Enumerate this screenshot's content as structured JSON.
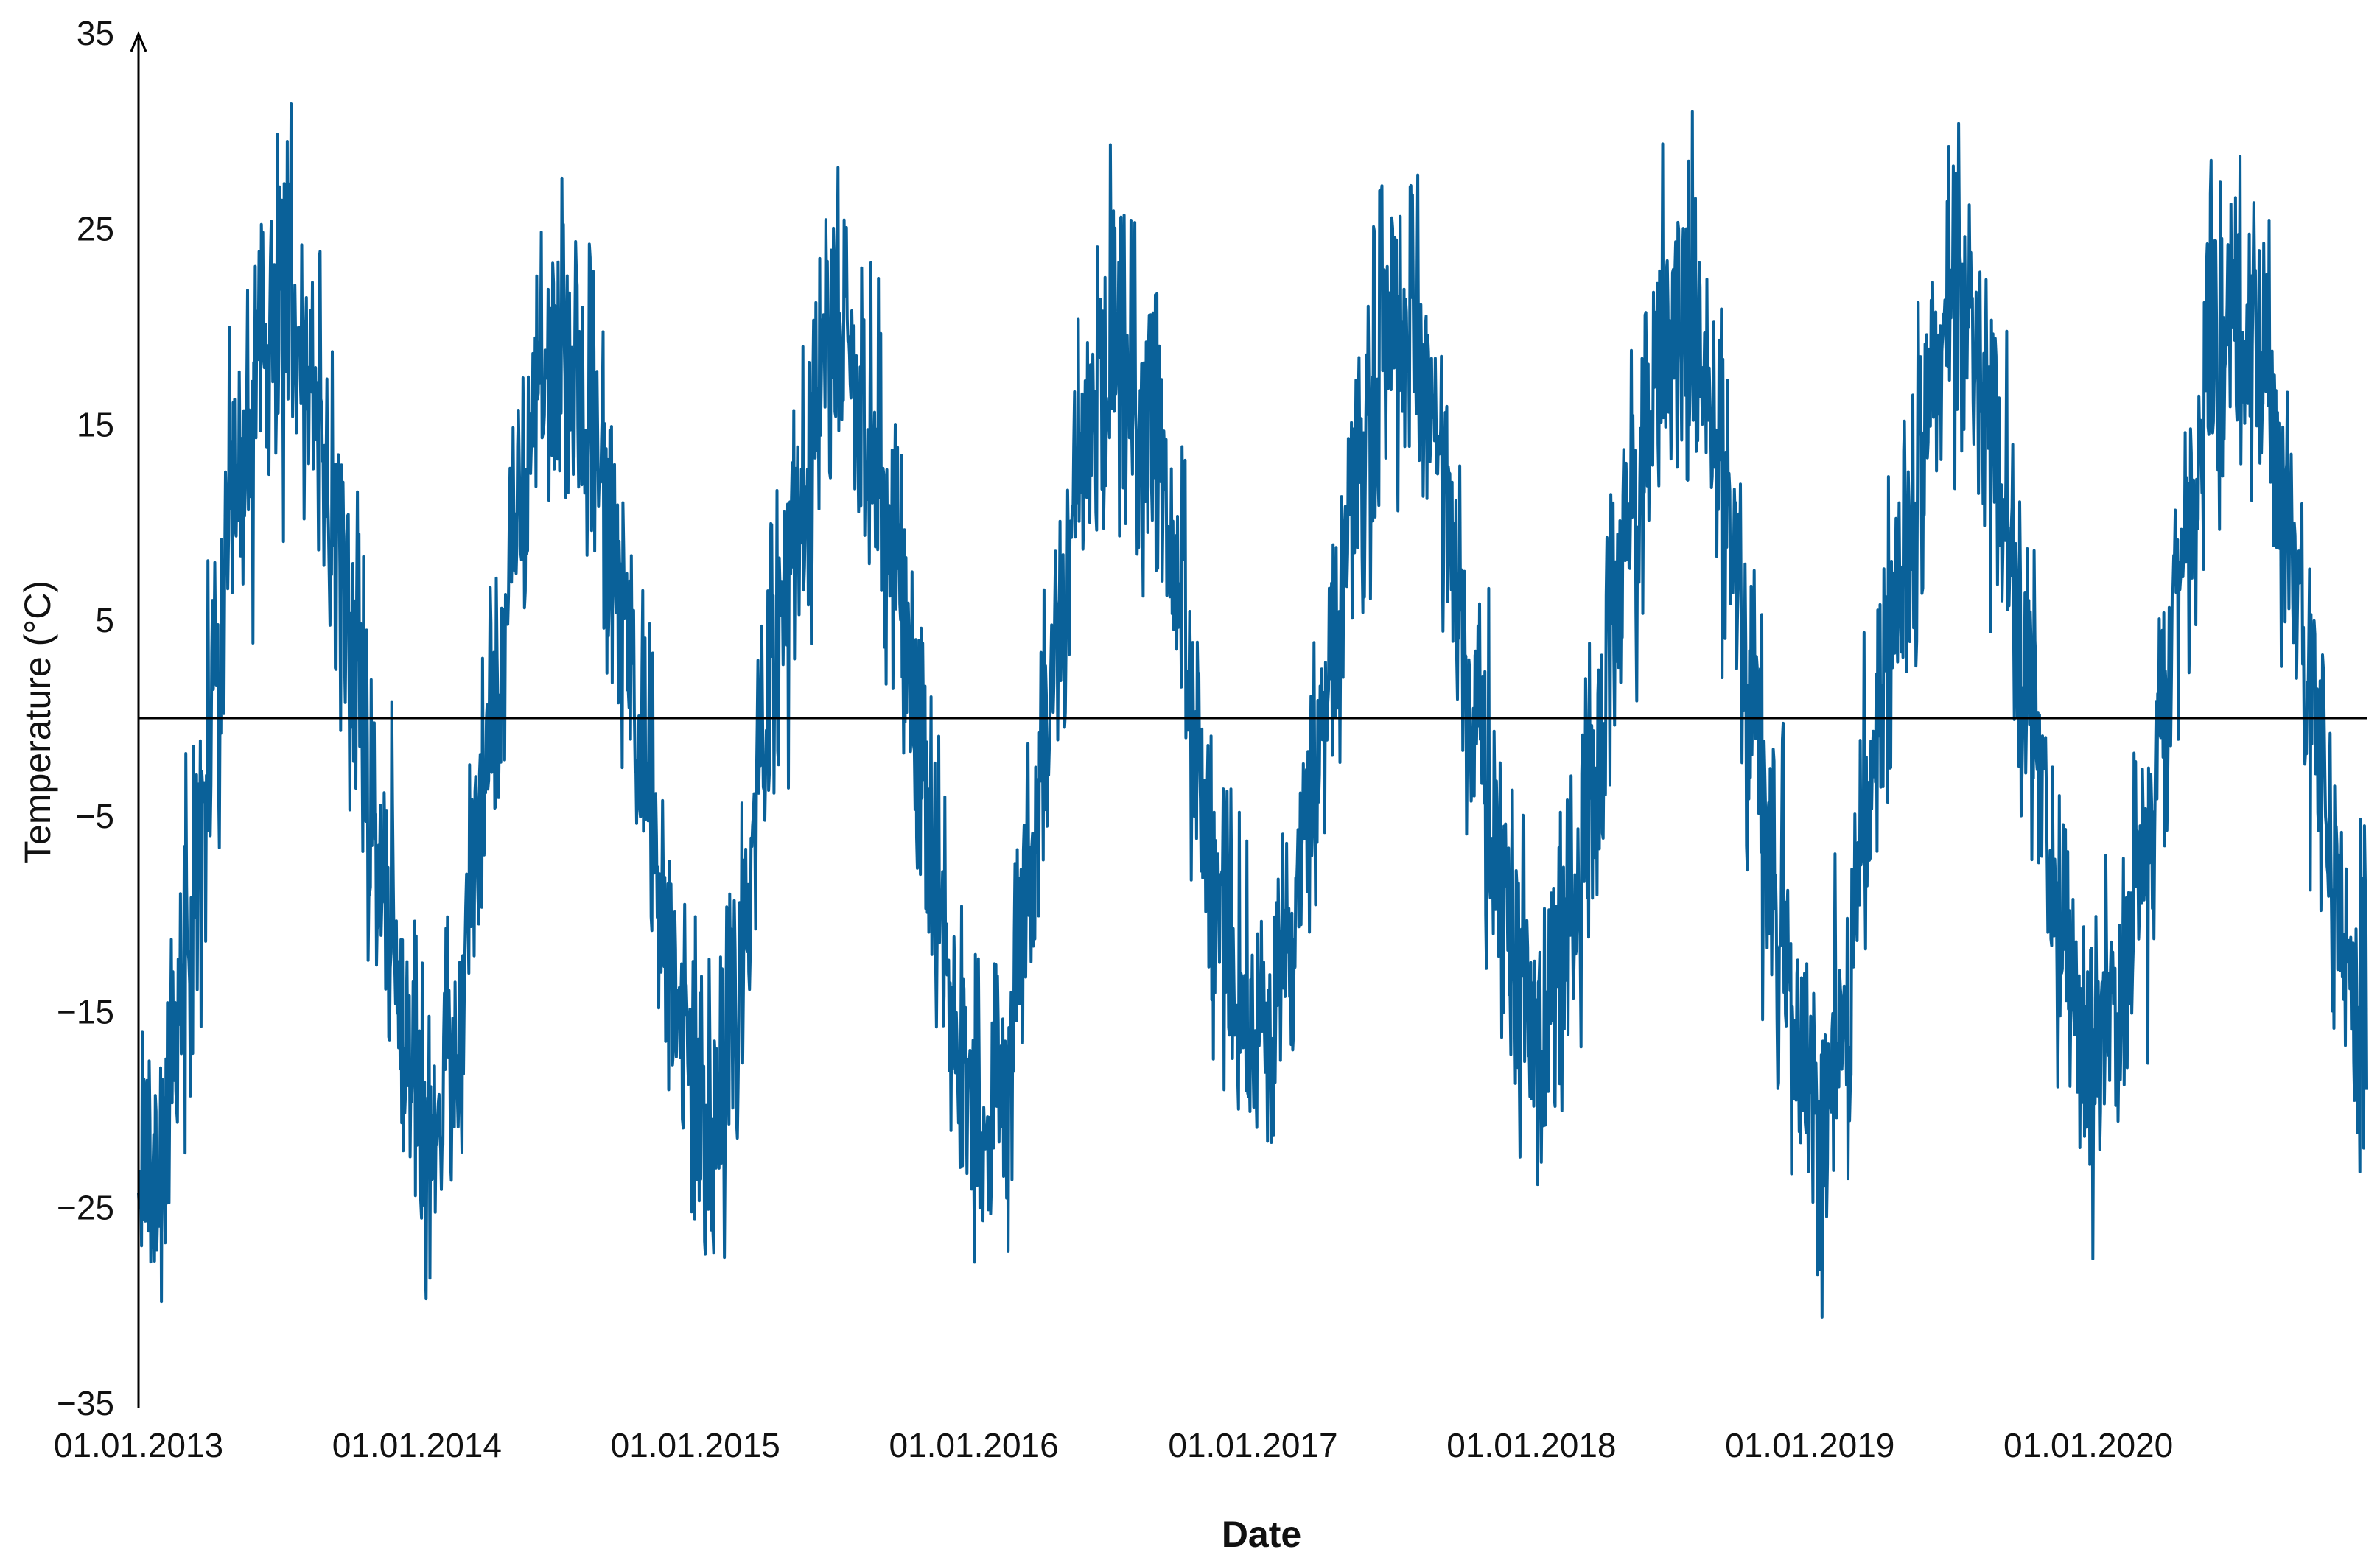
{
  "chart_data": {
    "type": "line",
    "title": "",
    "xlabel": "Date",
    "ylabel": "Temperature (°C)",
    "x_range": [
      "2013-01-01",
      "2020-12-31"
    ],
    "ylim": [
      -35,
      35
    ],
    "x_ticks": [
      "01.01.2013",
      "01.01.2014",
      "01.01.2015",
      "01.01.2016",
      "01.01.2017",
      "01.01.2018",
      "01.01.2019",
      "01.01.2020"
    ],
    "y_ticks": [
      35,
      25,
      15,
      5,
      -5,
      -15,
      -25,
      -35
    ],
    "reference_line_y": 0,
    "grid": false,
    "legend": "none",
    "line_color": "#0a6199",
    "axis_color": "#000000",
    "series": [
      {
        "x": [
          "2013-01-15",
          "2013-02-15",
          "2013-03-15",
          "2013-04-15",
          "2013-05-15",
          "2013-06-15",
          "2013-07-15",
          "2013-08-15",
          "2013-09-15",
          "2013-10-15",
          "2013-11-15",
          "2013-12-15",
          "2014-01-15",
          "2014-02-15",
          "2014-03-15",
          "2014-04-15",
          "2014-05-15",
          "2014-06-15",
          "2014-07-15",
          "2014-08-15",
          "2014-09-15",
          "2014-10-15",
          "2014-11-15",
          "2014-12-15",
          "2015-01-15",
          "2015-02-15",
          "2015-03-15",
          "2015-04-15",
          "2015-05-15",
          "2015-06-15",
          "2015-07-15",
          "2015-08-15",
          "2015-09-15",
          "2015-10-15",
          "2015-11-15",
          "2015-12-15",
          "2016-01-15",
          "2016-02-15",
          "2016-03-15",
          "2016-04-15",
          "2016-05-15",
          "2016-06-15",
          "2016-07-15",
          "2016-08-15",
          "2016-09-15",
          "2016-10-15",
          "2016-11-15",
          "2016-12-15",
          "2017-01-15",
          "2017-02-15",
          "2017-03-15",
          "2017-04-15",
          "2017-05-15",
          "2017-06-15",
          "2017-07-15",
          "2017-08-15",
          "2017-09-15",
          "2017-10-15",
          "2017-11-15",
          "2017-12-15",
          "2018-01-15",
          "2018-02-15",
          "2018-03-15",
          "2018-04-15",
          "2018-05-15",
          "2018-06-15",
          "2018-07-15",
          "2018-08-15",
          "2018-09-15",
          "2018-10-15",
          "2018-11-15",
          "2018-12-15",
          "2019-01-15",
          "2019-02-15",
          "2019-03-15",
          "2019-04-15",
          "2019-05-15",
          "2019-06-15",
          "2019-07-15",
          "2019-08-15",
          "2019-09-15",
          "2019-10-15",
          "2019-11-15",
          "2019-12-15",
          "2020-01-15",
          "2020-02-15",
          "2020-03-15",
          "2020-04-15",
          "2020-05-15",
          "2020-06-15",
          "2020-07-15",
          "2020-08-15",
          "2020-09-15",
          "2020-10-15",
          "2020-11-15",
          "2020-12-15"
        ],
        "values": [
          -24,
          -18,
          -8,
          2,
          12,
          20,
          22,
          18,
          10,
          2,
          -8,
          -16,
          -22,
          -18,
          -8,
          2,
          11,
          17,
          18,
          16,
          9,
          0,
          -8,
          -16,
          -22,
          -18,
          -6,
          3,
          11,
          18,
          20,
          16,
          10,
          1,
          -8,
          -17,
          -22,
          -17,
          -7,
          2,
          11,
          17,
          19,
          16,
          9,
          0,
          -9,
          -15,
          -18,
          -14,
          -5,
          3,
          11,
          18,
          20,
          17,
          10,
          1,
          -7,
          -14,
          -16,
          -12,
          -4,
          3,
          11,
          19,
          21,
          18,
          10,
          1,
          -8,
          -17,
          -20,
          -15,
          -5,
          3,
          11,
          18,
          21,
          18,
          10,
          1,
          -8,
          -15,
          -17,
          -14,
          -6,
          2,
          11,
          19,
          21,
          17,
          10,
          1,
          -6,
          -14
        ]
      }
    ]
  }
}
